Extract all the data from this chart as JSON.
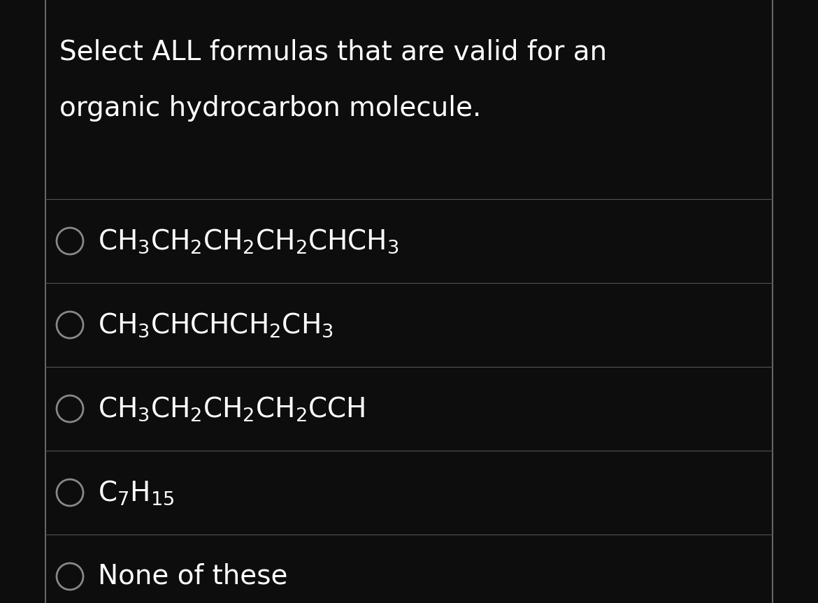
{
  "background_color": "#0d0d0d",
  "title_line1": "Select ALL formulas that are valid for an",
  "title_line2": "organic hydrocarbon molecule.",
  "title_color": "#ffffff",
  "title_fontsize": 28,
  "options": [
    "CH$_3$CH$_2$CH$_2$CH$_2$CHCH$_3$",
    "CH$_3$CHCHCH$_2$CH$_3$",
    "CH$_3$CH$_2$CH$_2$CH$_2$CCH",
    "C$_7$H$_{15}$",
    "None of these"
  ],
  "option_color": "#ffffff",
  "option_fontsize": 28,
  "circle_color": "#888888",
  "line_color": "#555555",
  "left_border_color": "#666666",
  "right_border_color": "#666666",
  "figsize": [
    11.7,
    8.63
  ],
  "dpi": 100
}
